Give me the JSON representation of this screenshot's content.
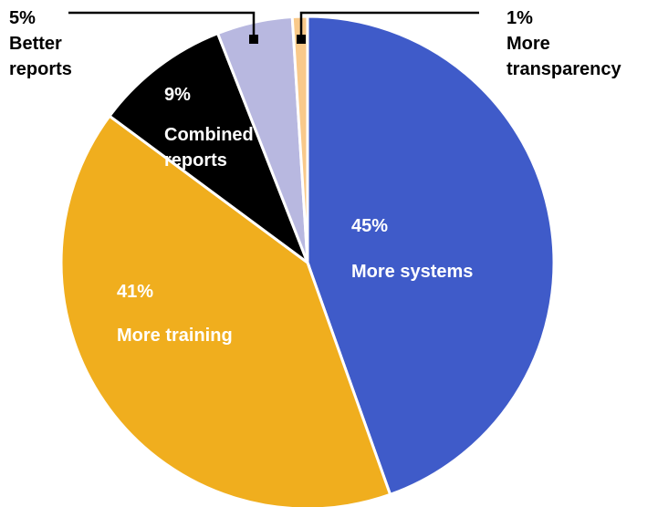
{
  "chart_data": {
    "type": "pie",
    "categories": [
      "More systems",
      "More training",
      "Combined reports",
      "Better reports",
      "More transparency"
    ],
    "values": [
      45,
      41,
      9,
      5,
      1
    ],
    "value_labels": [
      "45%",
      "41%",
      "9%",
      "5%",
      "1%"
    ],
    "colors": [
      "#3f5bc9",
      "#f0ae1e",
      "#000000",
      "#b8b8e0",
      "#f9c98a"
    ]
  }
}
